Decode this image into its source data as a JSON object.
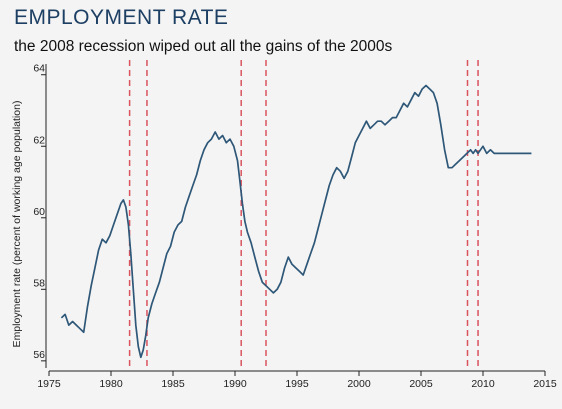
{
  "chart_data": {
    "type": "line",
    "title": "EMPLOYMENT RATE",
    "subtitle": "the 2008 recession wiped out all the gains of the 2000s",
    "xlabel": "",
    "ylabel": "Employment rate (percent of working age population)",
    "xlim": [
      1975,
      2015
    ],
    "ylim": [
      55.8,
      64.3
    ],
    "x_ticks": [
      1975,
      1980,
      1985,
      1990,
      1995,
      2000,
      2005,
      2010,
      2015
    ],
    "y_ticks": [
      56,
      58,
      60,
      62,
      64
    ],
    "grid": false,
    "legend": "none",
    "colors": {
      "line": "#2e5778",
      "recession": "#d9545f",
      "background": "#f4f4f4"
    },
    "recession_lines": [
      1981.5,
      1982.9,
      1990.5,
      1992.5,
      2008.75,
      2009.6
    ],
    "series": [
      {
        "x": [
          1976.0,
          1976.3,
          1976.6,
          1976.9,
          1977.2,
          1977.5,
          1977.8,
          1978.1,
          1978.4,
          1978.7,
          1979.0,
          1979.3,
          1979.6,
          1979.9,
          1980.2,
          1980.5,
          1980.8,
          1981.0,
          1981.2,
          1981.4,
          1981.6,
          1981.8,
          1982.0,
          1982.2,
          1982.4,
          1982.6,
          1982.8,
          1983.0,
          1983.3,
          1983.6,
          1983.9,
          1984.2,
          1984.5,
          1984.8,
          1985.1,
          1985.4,
          1985.7,
          1986.0,
          1986.3,
          1986.6,
          1986.9,
          1987.2,
          1987.5,
          1987.8,
          1988.1,
          1988.4,
          1988.7,
          1989.0,
          1989.3,
          1989.6,
          1989.9,
          1990.2,
          1990.4,
          1990.6,
          1990.8,
          1991.0,
          1991.3,
          1991.6,
          1991.9,
          1992.2,
          1992.5,
          1992.8,
          1993.1,
          1993.4,
          1993.7,
          1994.0,
          1994.3,
          1994.6,
          1994.9,
          1995.2,
          1995.5,
          1995.8,
          1996.1,
          1996.4,
          1996.7,
          1997.0,
          1997.3,
          1997.6,
          1997.9,
          1998.2,
          1998.5,
          1998.8,
          1999.1,
          1999.4,
          1999.7,
          2000.0,
          2000.3,
          2000.6,
          2000.9,
          2001.2,
          2001.5,
          2001.8,
          2002.1,
          2002.4,
          2002.7,
          2003.0,
          2003.3,
          2003.6,
          2003.9,
          2004.2,
          2004.5,
          2004.8,
          2005.1,
          2005.4,
          2005.7,
          2006.0,
          2006.3,
          2006.6,
          2006.9,
          2007.2,
          2007.5,
          2007.8,
          2008.1,
          2008.4,
          2008.7,
          2009.0,
          2009.2,
          2009.4,
          2009.6,
          2009.8,
          2010.0,
          2010.3,
          2010.6,
          2010.9,
          2011.2,
          2011.5,
          2011.8,
          2012.1,
          2012.4,
          2012.7,
          2013.0,
          2013.3,
          2013.6,
          2013.9
        ],
        "values": [
          57.2,
          57.3,
          57.0,
          57.1,
          57.0,
          56.9,
          56.8,
          57.5,
          58.1,
          58.6,
          59.1,
          59.4,
          59.3,
          59.5,
          59.8,
          60.1,
          60.4,
          60.5,
          60.3,
          59.8,
          59.0,
          58.0,
          57.0,
          56.4,
          56.1,
          56.3,
          56.7,
          57.2,
          57.6,
          57.9,
          58.2,
          58.6,
          59.0,
          59.2,
          59.6,
          59.8,
          59.9,
          60.3,
          60.6,
          60.9,
          61.2,
          61.6,
          61.9,
          62.1,
          62.2,
          62.4,
          62.2,
          62.3,
          62.1,
          62.2,
          62.0,
          61.6,
          61.0,
          60.4,
          59.9,
          59.6,
          59.3,
          58.9,
          58.5,
          58.2,
          58.1,
          58.0,
          57.9,
          58.0,
          58.2,
          58.6,
          58.9,
          58.7,
          58.6,
          58.5,
          58.4,
          58.7,
          59.0,
          59.3,
          59.7,
          60.1,
          60.5,
          60.9,
          61.2,
          61.4,
          61.3,
          61.1,
          61.3,
          61.7,
          62.1,
          62.3,
          62.5,
          62.7,
          62.5,
          62.6,
          62.7,
          62.7,
          62.6,
          62.7,
          62.8,
          62.8,
          63.0,
          63.2,
          63.1,
          63.3,
          63.5,
          63.4,
          63.6,
          63.7,
          63.6,
          63.5,
          63.2,
          62.6,
          61.9,
          61.4,
          61.4,
          61.5,
          61.6,
          61.7,
          61.8,
          61.9,
          61.8,
          61.9,
          61.8,
          61.9,
          62.0,
          61.8,
          61.9,
          61.8,
          61.8,
          61.8,
          61.8,
          61.8,
          61.8,
          61.8,
          61.8,
          61.8,
          61.8,
          61.8
        ]
      }
    ]
  }
}
